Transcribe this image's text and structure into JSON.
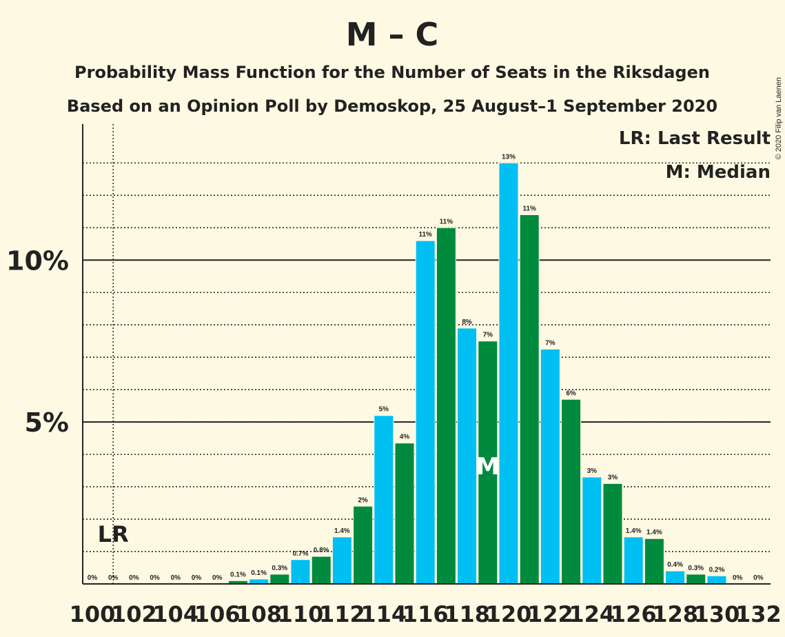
{
  "chart_data": {
    "type": "bar",
    "title": "M – C",
    "subtitle": "Probability Mass Function for the Number of Seats in the Riksdagen",
    "subtitle2": "Based on an Opinion Poll by Demoskop, 25 August–1 September 2020",
    "copyright": "© 2020 Filip van Laenen",
    "legend": {
      "lr": "LR: Last Result",
      "m": "M: Median",
      "placement": "top-right"
    },
    "ylim": [
      0,
      14.2
    ],
    "yticks": [
      {
        "value": 5,
        "label": "5%"
      },
      {
        "value": 10,
        "label": "10%"
      }
    ],
    "minor_grid_step": 1,
    "x_tick_labels": [
      "100",
      "102",
      "104",
      "106",
      "108",
      "110",
      "112",
      "114",
      "116",
      "118",
      "120",
      "122",
      "124",
      "126",
      "128",
      "130",
      "132"
    ],
    "categories": [
      100,
      101,
      102,
      103,
      104,
      105,
      106,
      107,
      108,
      109,
      110,
      111,
      112,
      113,
      114,
      115,
      116,
      117,
      118,
      119,
      120,
      121,
      122,
      123,
      124,
      125,
      126,
      127,
      128,
      129,
      130,
      131,
      132
    ],
    "values": [
      0,
      0,
      0,
      0,
      0,
      0,
      0,
      0.1,
      0.15,
      0.3,
      0.75,
      0.85,
      1.45,
      2.4,
      5.2,
      4.35,
      10.6,
      11.0,
      7.9,
      7.5,
      13.0,
      11.4,
      7.25,
      5.7,
      3.3,
      3.1,
      1.45,
      1.4,
      0.4,
      0.3,
      0.25,
      0,
      0
    ],
    "labels": [
      "0%",
      "0%",
      "0%",
      "0%",
      "0%",
      "0%",
      "0%",
      "0.1%",
      "0.1%",
      "0.3%",
      "0.7%",
      "0.8%",
      "1.4%",
      "2%",
      "5%",
      "4%",
      "11%",
      "11%",
      "8%",
      "7%",
      "13%",
      "11%",
      "7%",
      "6%",
      "3%",
      "3%",
      "1.4%",
      "1.4%",
      "0.4%",
      "0.3%",
      "0.2%",
      "0%",
      "0%"
    ],
    "colors": {
      "even": "#00BFF3",
      "odd": "#008A3E",
      "text": "#222222",
      "background": "#FEF9E2"
    },
    "last_result": {
      "seat": 101,
      "label": "LR"
    },
    "median": {
      "seat": 119,
      "label": "M"
    }
  }
}
